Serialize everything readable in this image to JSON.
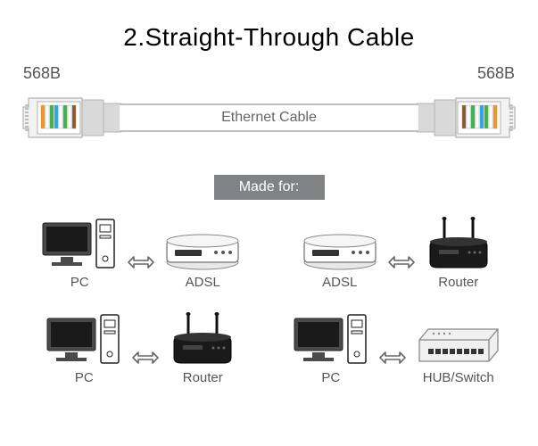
{
  "title": "2.Straight-Through Cable",
  "standard_left": "568B",
  "standard_right": "568B",
  "cable_label": "Ethernet Cable",
  "made_for_label": "Made for:",
  "colors": {
    "text_title": "#000000",
    "text_body": "#555555",
    "badge_bg": "#808285",
    "badge_text": "#ffffff",
    "cable_border": "#bfbfbf",
    "device_stroke": "#333333",
    "device_fill": "#4a4a4a",
    "arrow_stroke": "#666666",
    "wire_orange": "#f7941d",
    "wire_green": "#39b54a",
    "wire_blue": "#27aae1",
    "wire_brown": "#8b5a2b",
    "connector_body": "#d9d9d9",
    "connector_edge": "#b3b3b3"
  },
  "pairs": [
    {
      "left": {
        "type": "pc",
        "label": "PC"
      },
      "right": {
        "type": "adsl",
        "label": "ADSL"
      }
    },
    {
      "left": {
        "type": "adsl",
        "label": "ADSL"
      },
      "right": {
        "type": "router",
        "label": "Router"
      }
    },
    {
      "left": {
        "type": "pc",
        "label": "PC"
      },
      "right": {
        "type": "router",
        "label": "Router"
      }
    },
    {
      "left": {
        "type": "pc",
        "label": "PC"
      },
      "right": {
        "type": "switch",
        "label": "HUB/Switch"
      }
    }
  ]
}
